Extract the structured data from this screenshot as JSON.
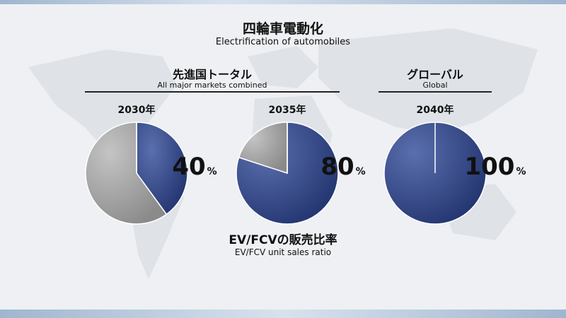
{
  "title": {
    "jp": "四輪車電動化",
    "en": "Electrification of automobiles"
  },
  "groups": [
    {
      "jp": "先進国トータル",
      "en": "All major markets combined"
    },
    {
      "jp": "グローバル",
      "en": "Global"
    }
  ],
  "caption": {
    "jp": "EV/FCVの販売比率",
    "en": "EV/FCV unit sales ratio"
  },
  "colors": {
    "ev": "#22346f",
    "other": "#8a8a8a"
  },
  "chart_data": [
    {
      "type": "pie",
      "title": "2030年",
      "slices": [
        {
          "value": 40
        },
        {
          "value": 60
        }
      ],
      "label_value": "40",
      "label_unit": "%"
    },
    {
      "type": "pie",
      "title": "2035年",
      "slices": [
        {
          "value": 80
        },
        {
          "value": 20
        }
      ],
      "label_value": "80",
      "label_unit": "%"
    },
    {
      "type": "pie",
      "title": "2040年",
      "slices": [
        {
          "value": 100
        }
      ],
      "label_value": "100",
      "label_unit": "%"
    }
  ]
}
